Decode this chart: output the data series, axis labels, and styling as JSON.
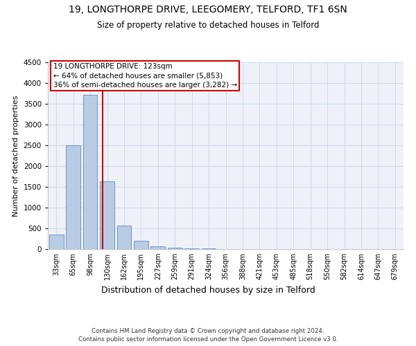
{
  "title": "19, LONGTHORPE DRIVE, LEEGOMERY, TELFORD, TF1 6SN",
  "subtitle": "Size of property relative to detached houses in Telford",
  "xlabel": "Distribution of detached houses by size in Telford",
  "ylabel": "Number of detached properties",
  "categories": [
    "33sqm",
    "65sqm",
    "98sqm",
    "130sqm",
    "162sqm",
    "195sqm",
    "227sqm",
    "259sqm",
    "291sqm",
    "324sqm",
    "356sqm",
    "388sqm",
    "421sqm",
    "453sqm",
    "485sqm",
    "518sqm",
    "550sqm",
    "582sqm",
    "614sqm",
    "647sqm",
    "679sqm"
  ],
  "values": [
    350,
    2500,
    3720,
    1640,
    570,
    200,
    75,
    40,
    15,
    10,
    5,
    0,
    5,
    0,
    0,
    0,
    0,
    0,
    0,
    0,
    0
  ],
  "bar_color": "#b8cce4",
  "bar_edge_color": "#4472c4",
  "grid_color": "#d0d8e8",
  "bg_color": "#eef2f8",
  "vline_color": "#cc0000",
  "vline_pos": 2.73,
  "annotation_text": "19 LONGTHORPE DRIVE: 123sqm\n← 64% of detached houses are smaller (5,853)\n36% of semi-detached houses are larger (3,282) →",
  "annotation_box_color": "#cc0000",
  "footer": "Contains HM Land Registry data © Crown copyright and database right 2024.\nContains public sector information licensed under the Open Government Licence v3.0.",
  "ylim": [
    0,
    4500
  ],
  "yticks": [
    0,
    500,
    1000,
    1500,
    2000,
    2500,
    3000,
    3500,
    4000,
    4500
  ],
  "title_fontsize": 10,
  "subtitle_fontsize": 8.5,
  "ylabel_fontsize": 8,
  "xlabel_fontsize": 9,
  "tick_fontsize": 7,
  "annotation_fontsize": 7.5,
  "footer_fontsize": 6.2
}
